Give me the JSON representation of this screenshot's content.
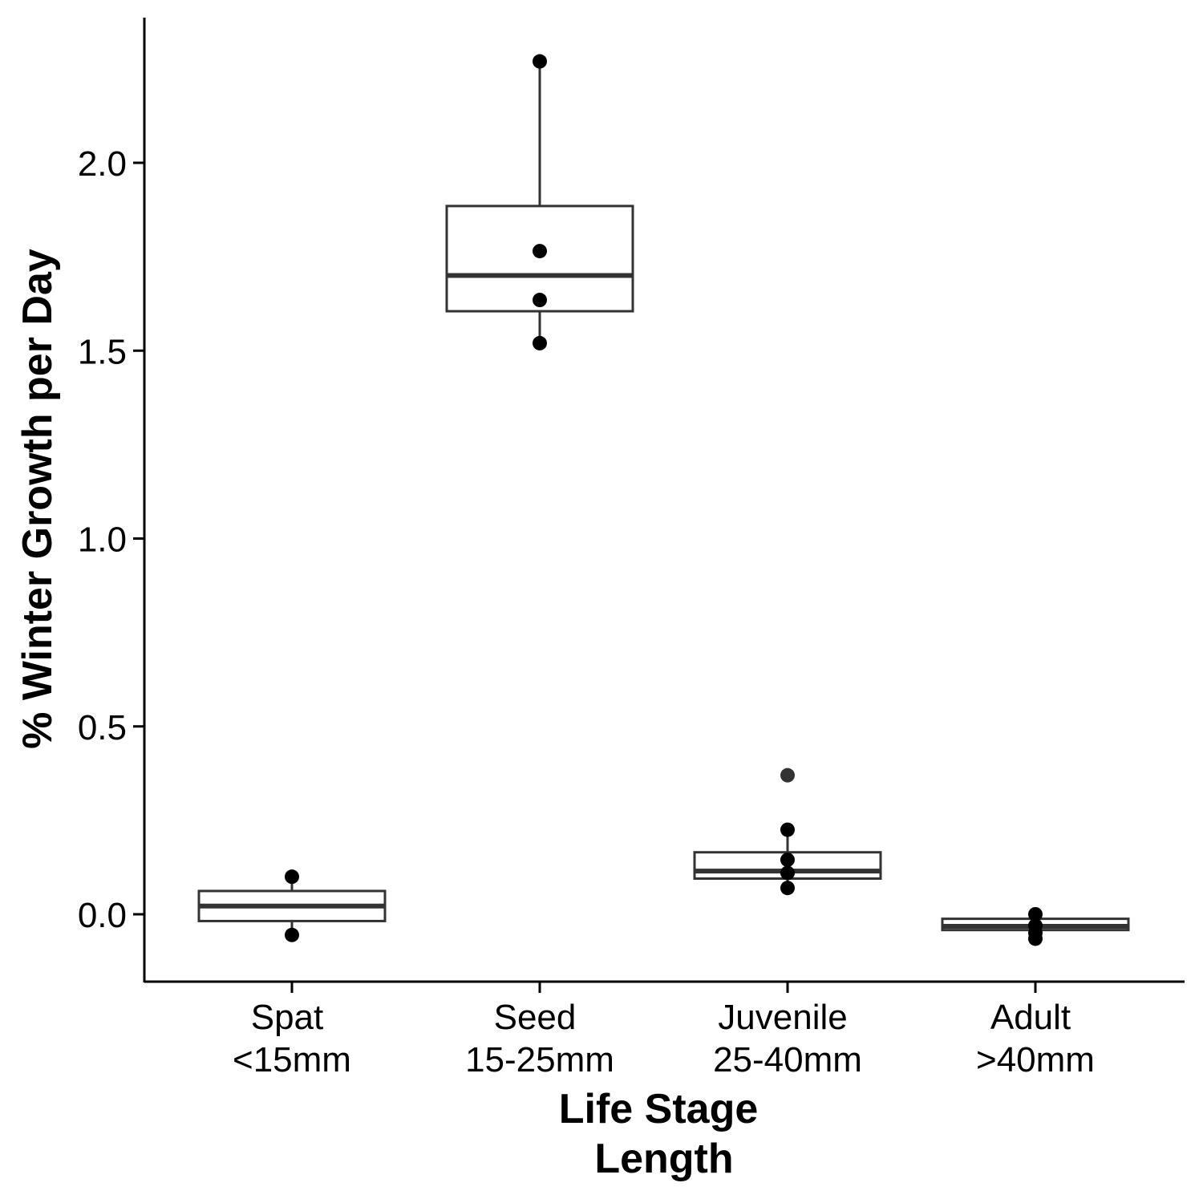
{
  "chart_data": {
    "type": "boxplot",
    "title": "",
    "xlabel": [
      "Life Stage",
      "Length"
    ],
    "ylabel": "% Winter Growth per Day",
    "ylim": [
      -0.18,
      2.5
    ],
    "yticks": [
      "0.0",
      "0.5",
      "1.0",
      "1.5",
      "2.0"
    ],
    "ytick_values": [
      0.0,
      0.5,
      1.0,
      1.5,
      2.0
    ],
    "grid": false,
    "legend": "none",
    "colors": {
      "box_stroke": "#333333",
      "box_fill": "#ffffff",
      "points": "#000000",
      "axis": "#000000"
    },
    "categories": [
      {
        "name": "Spat",
        "range": "<15mm",
        "box": {
          "min": -0.055,
          "q1": -0.018,
          "median": 0.022,
          "q3": 0.062,
          "max": 0.1
        },
        "points": [
          0.1,
          -0.055
        ]
      },
      {
        "name": "Seed",
        "range": "15-25mm",
        "box": {
          "min": 1.52,
          "q1": 1.605,
          "median": 1.7,
          "q3": 1.885,
          "max": 2.27
        },
        "points": [
          2.27,
          1.765,
          1.635,
          1.52
        ]
      },
      {
        "name": "Juvenile",
        "range": "25-40mm",
        "box": {
          "min": 0.07,
          "q1": 0.095,
          "median": 0.115,
          "q3": 0.165,
          "max": 0.225
        },
        "outliers": [
          0.37
        ],
        "points": [
          0.225,
          0.145,
          0.11,
          0.07
        ]
      },
      {
        "name": "Adult",
        "range": ">40mm",
        "box": {
          "min": -0.065,
          "q1": -0.042,
          "median": -0.032,
          "q3": -0.012,
          "max": 0.0
        },
        "points": [
          0.0,
          -0.03,
          -0.05,
          -0.065
        ]
      }
    ]
  }
}
